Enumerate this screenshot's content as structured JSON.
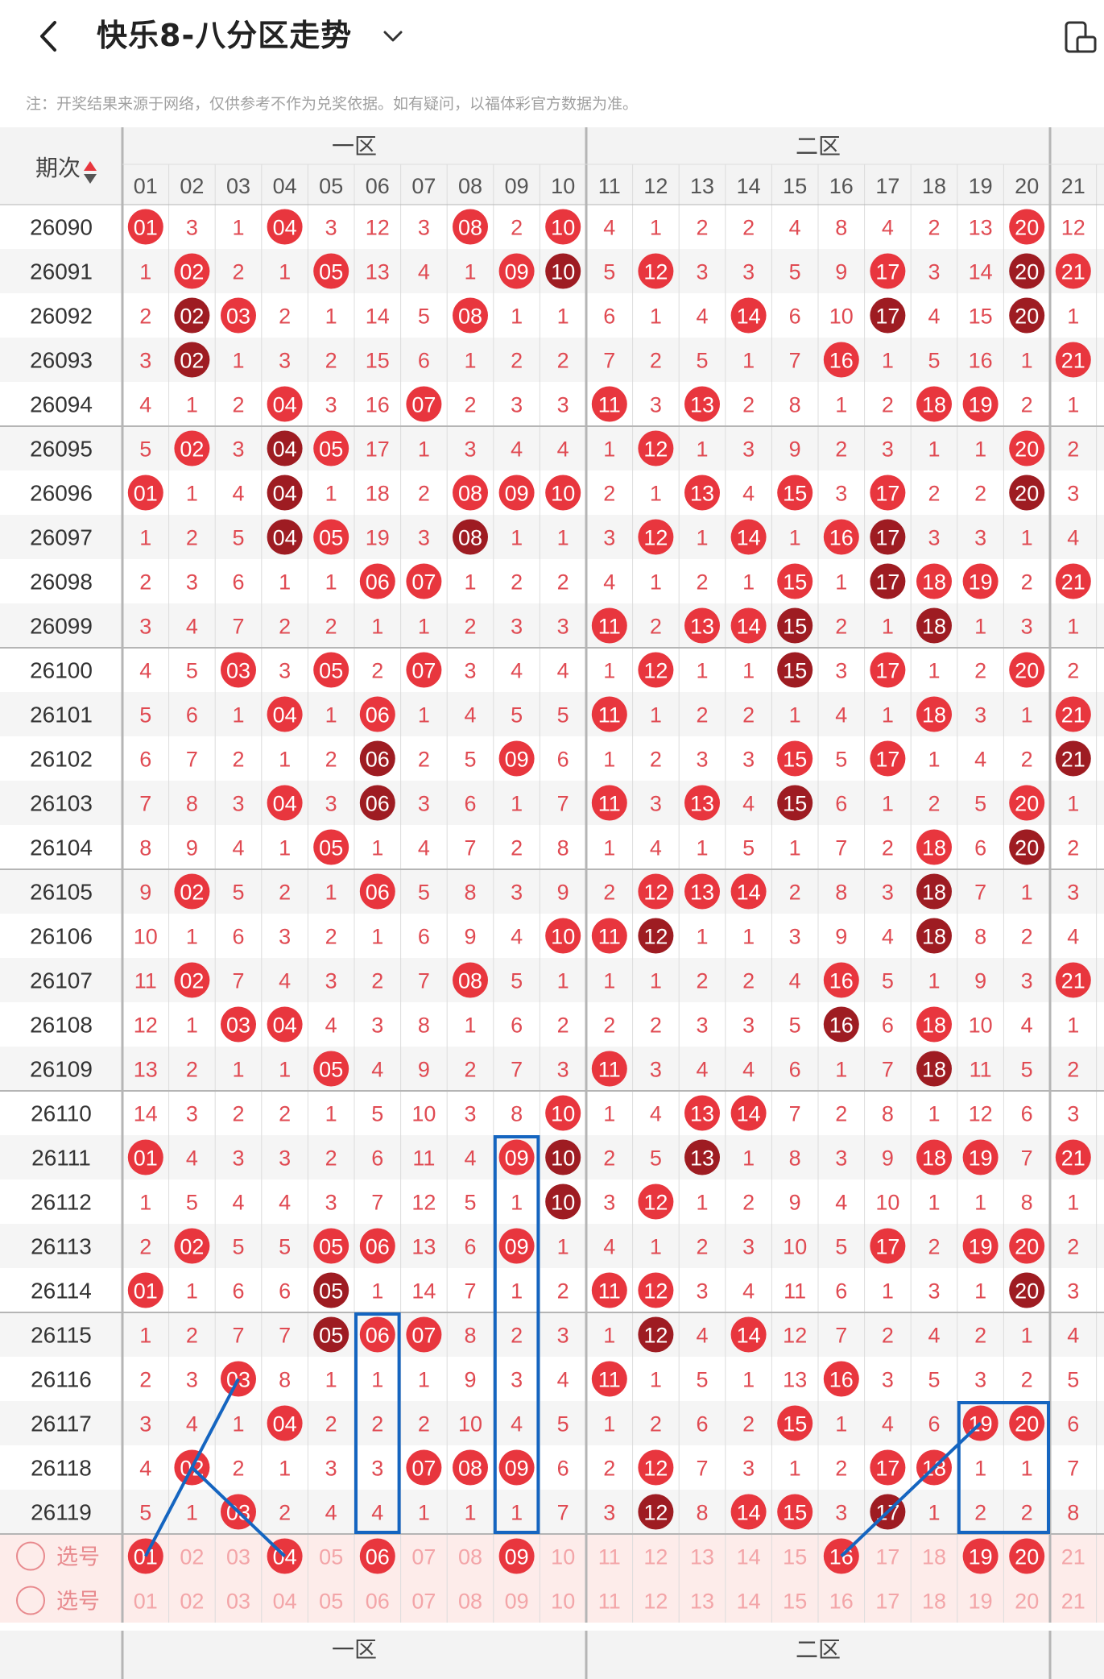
{
  "header": {
    "title": "快乐8-八分区走势",
    "back_icon": "chevron-left-icon",
    "dropdown_icon": "chevron-down-icon",
    "device_icon": "device-rotate-icon"
  },
  "note": "注：开奖结果来源于网络，仅供参考不作为兑奖依据。如有疑问，以福体彩官方数据为准。",
  "table": {
    "period_header": "期次",
    "zone_labels": [
      "一区",
      "二区"
    ],
    "columns": [
      "01",
      "02",
      "03",
      "04",
      "05",
      "06",
      "07",
      "08",
      "09",
      "10",
      "11",
      "12",
      "13",
      "14",
      "15",
      "16",
      "17",
      "18",
      "19",
      "20",
      "21"
    ],
    "colors": {
      "hit": "#e8363e",
      "hit_repeat": "#9e1c22",
      "miss_text": "#e04a52",
      "grid": "#dcdcdc",
      "zone_line": "#b5b5b5",
      "header_bg": "#f3f3f3",
      "select_bg": "#fdecea",
      "mark": "#1565c0"
    },
    "rows": [
      {
        "period": "26090",
        "cells": [
          "01",
          "3",
          "1",
          "04",
          "3",
          "12",
          "3",
          "08",
          "2",
          "10",
          "4",
          "1",
          "2",
          "2",
          "4",
          "8",
          "4",
          "2",
          "13",
          "20",
          "12"
        ]
      },
      {
        "period": "26091",
        "cells": [
          "1",
          "02",
          "2",
          "1",
          "05",
          "13",
          "4",
          "1",
          "09",
          "10",
          "5",
          "12",
          "3",
          "3",
          "5",
          "9",
          "17",
          "3",
          "14",
          "20",
          "21"
        ]
      },
      {
        "period": "26092",
        "cells": [
          "2",
          "02",
          "03",
          "2",
          "1",
          "14",
          "5",
          "08",
          "1",
          "1",
          "6",
          "1",
          "4",
          "14",
          "6",
          "10",
          "17",
          "4",
          "15",
          "20",
          "1"
        ]
      },
      {
        "period": "26093",
        "cells": [
          "3",
          "02",
          "1",
          "3",
          "2",
          "15",
          "6",
          "1",
          "2",
          "2",
          "7",
          "2",
          "5",
          "1",
          "7",
          "16",
          "1",
          "5",
          "16",
          "1",
          "21"
        ]
      },
      {
        "period": "26094",
        "cells": [
          "4",
          "1",
          "2",
          "04",
          "3",
          "16",
          "07",
          "2",
          "3",
          "3",
          "11",
          "3",
          "13",
          "2",
          "8",
          "1",
          "2",
          "18",
          "19",
          "2",
          "1"
        ]
      },
      {
        "period": "26095",
        "cells": [
          "5",
          "02",
          "3",
          "04",
          "05",
          "17",
          "1",
          "3",
          "4",
          "4",
          "1",
          "12",
          "1",
          "3",
          "9",
          "2",
          "3",
          "1",
          "1",
          "20",
          "2"
        ]
      },
      {
        "period": "26096",
        "cells": [
          "01",
          "1",
          "4",
          "04",
          "1",
          "18",
          "2",
          "08",
          "09",
          "10",
          "2",
          "1",
          "13",
          "4",
          "15",
          "3",
          "17",
          "2",
          "2",
          "20",
          "3"
        ]
      },
      {
        "period": "26097",
        "cells": [
          "1",
          "2",
          "5",
          "04",
          "05",
          "19",
          "3",
          "08",
          "1",
          "1",
          "3",
          "12",
          "1",
          "14",
          "1",
          "16",
          "17",
          "3",
          "3",
          "1",
          "4"
        ]
      },
      {
        "period": "26098",
        "cells": [
          "2",
          "3",
          "6",
          "1",
          "1",
          "06",
          "07",
          "1",
          "2",
          "2",
          "4",
          "1",
          "2",
          "1",
          "15",
          "1",
          "17",
          "18",
          "19",
          "2",
          "21"
        ]
      },
      {
        "period": "26099",
        "cells": [
          "3",
          "4",
          "7",
          "2",
          "2",
          "1",
          "1",
          "2",
          "3",
          "3",
          "11",
          "2",
          "13",
          "14",
          "15",
          "2",
          "1",
          "18",
          "1",
          "3",
          "1"
        ]
      },
      {
        "period": "26100",
        "cells": [
          "4",
          "5",
          "03",
          "3",
          "05",
          "2",
          "07",
          "3",
          "4",
          "4",
          "1",
          "12",
          "1",
          "1",
          "15",
          "3",
          "17",
          "1",
          "2",
          "20",
          "2"
        ]
      },
      {
        "period": "26101",
        "cells": [
          "5",
          "6",
          "1",
          "04",
          "1",
          "06",
          "1",
          "4",
          "5",
          "5",
          "11",
          "1",
          "2",
          "2",
          "1",
          "4",
          "1",
          "18",
          "3",
          "1",
          "21"
        ]
      },
      {
        "period": "26102",
        "cells": [
          "6",
          "7",
          "2",
          "1",
          "2",
          "06",
          "2",
          "5",
          "09",
          "6",
          "1",
          "2",
          "3",
          "3",
          "15",
          "5",
          "17",
          "1",
          "4",
          "2",
          "21"
        ]
      },
      {
        "period": "26103",
        "cells": [
          "7",
          "8",
          "3",
          "04",
          "3",
          "06",
          "3",
          "6",
          "1",
          "7",
          "11",
          "3",
          "13",
          "4",
          "15",
          "6",
          "1",
          "2",
          "5",
          "20",
          "1"
        ]
      },
      {
        "period": "26104",
        "cells": [
          "8",
          "9",
          "4",
          "1",
          "05",
          "1",
          "4",
          "7",
          "2",
          "8",
          "1",
          "4",
          "1",
          "5",
          "1",
          "7",
          "2",
          "18",
          "6",
          "20",
          "2"
        ]
      },
      {
        "period": "26105",
        "cells": [
          "9",
          "02",
          "5",
          "2",
          "1",
          "06",
          "5",
          "8",
          "3",
          "9",
          "2",
          "12",
          "13",
          "14",
          "2",
          "8",
          "3",
          "18",
          "7",
          "1",
          "3"
        ]
      },
      {
        "period": "26106",
        "cells": [
          "10",
          "1",
          "6",
          "3",
          "2",
          "1",
          "6",
          "9",
          "4",
          "10",
          "11",
          "12",
          "1",
          "1",
          "3",
          "9",
          "4",
          "18",
          "8",
          "2",
          "4"
        ]
      },
      {
        "period": "26107",
        "cells": [
          "11",
          "02",
          "7",
          "4",
          "3",
          "2",
          "7",
          "08",
          "5",
          "1",
          "1",
          "1",
          "2",
          "2",
          "4",
          "16",
          "5",
          "1",
          "9",
          "3",
          "21"
        ]
      },
      {
        "period": "26108",
        "cells": [
          "12",
          "1",
          "03",
          "04",
          "4",
          "3",
          "8",
          "1",
          "6",
          "2",
          "2",
          "2",
          "3",
          "3",
          "5",
          "16",
          "6",
          "18",
          "10",
          "4",
          "1"
        ]
      },
      {
        "period": "26109",
        "cells": [
          "13",
          "2",
          "1",
          "1",
          "05",
          "4",
          "9",
          "2",
          "7",
          "3",
          "11",
          "3",
          "4",
          "4",
          "6",
          "1",
          "7",
          "18",
          "11",
          "5",
          "2"
        ]
      },
      {
        "period": "26110",
        "cells": [
          "14",
          "3",
          "2",
          "2",
          "1",
          "5",
          "10",
          "3",
          "8",
          "10",
          "1",
          "4",
          "13",
          "14",
          "7",
          "2",
          "8",
          "1",
          "12",
          "6",
          "3"
        ]
      },
      {
        "period": "26111",
        "cells": [
          "01",
          "4",
          "3",
          "3",
          "2",
          "6",
          "11",
          "4",
          "09",
          "10",
          "2",
          "5",
          "13",
          "1",
          "8",
          "3",
          "9",
          "18",
          "19",
          "7",
          "21"
        ]
      },
      {
        "period": "26112",
        "cells": [
          "1",
          "5",
          "4",
          "4",
          "3",
          "7",
          "12",
          "5",
          "1",
          "10",
          "3",
          "12",
          "1",
          "2",
          "9",
          "4",
          "10",
          "1",
          "1",
          "8",
          "1"
        ]
      },
      {
        "period": "26113",
        "cells": [
          "2",
          "02",
          "5",
          "5",
          "05",
          "06",
          "13",
          "6",
          "09",
          "1",
          "4",
          "1",
          "2",
          "3",
          "10",
          "5",
          "17",
          "2",
          "19",
          "20",
          "2"
        ]
      },
      {
        "period": "26114",
        "cells": [
          "01",
          "1",
          "6",
          "6",
          "05",
          "1",
          "14",
          "7",
          "1",
          "2",
          "11",
          "12",
          "3",
          "4",
          "11",
          "6",
          "1",
          "3",
          "1",
          "20",
          "3"
        ]
      },
      {
        "period": "26115",
        "cells": [
          "1",
          "2",
          "7",
          "7",
          "05",
          "06",
          "07",
          "8",
          "2",
          "3",
          "1",
          "12",
          "4",
          "14",
          "12",
          "7",
          "2",
          "4",
          "2",
          "1",
          "4"
        ]
      },
      {
        "period": "26116",
        "cells": [
          "2",
          "3",
          "03",
          "8",
          "1",
          "1",
          "1",
          "9",
          "3",
          "4",
          "11",
          "1",
          "5",
          "1",
          "13",
          "16",
          "3",
          "5",
          "3",
          "2",
          "5"
        ]
      },
      {
        "period": "26117",
        "cells": [
          "3",
          "4",
          "1",
          "04",
          "2",
          "2",
          "2",
          "10",
          "4",
          "5",
          "1",
          "2",
          "6",
          "2",
          "15",
          "1",
          "4",
          "6",
          "19",
          "20",
          "6"
        ]
      },
      {
        "period": "26118",
        "cells": [
          "4",
          "02",
          "2",
          "1",
          "3",
          "3",
          "07",
          "08",
          "09",
          "6",
          "2",
          "12",
          "7",
          "3",
          "1",
          "2",
          "17",
          "18",
          "1",
          "1",
          "7"
        ]
      },
      {
        "period": "26119",
        "cells": [
          "5",
          "1",
          "03",
          "2",
          "4",
          "4",
          "1",
          "1",
          "1",
          "7",
          "3",
          "12",
          "8",
          "14",
          "15",
          "3",
          "17",
          "1",
          "2",
          "2",
          "8"
        ]
      }
    ],
    "select_rows": [
      {
        "label": "选号",
        "selected": [
          "01",
          "04",
          "06",
          "09",
          "16",
          "19",
          "20"
        ]
      },
      {
        "label": "选号",
        "selected": []
      }
    ]
  }
}
